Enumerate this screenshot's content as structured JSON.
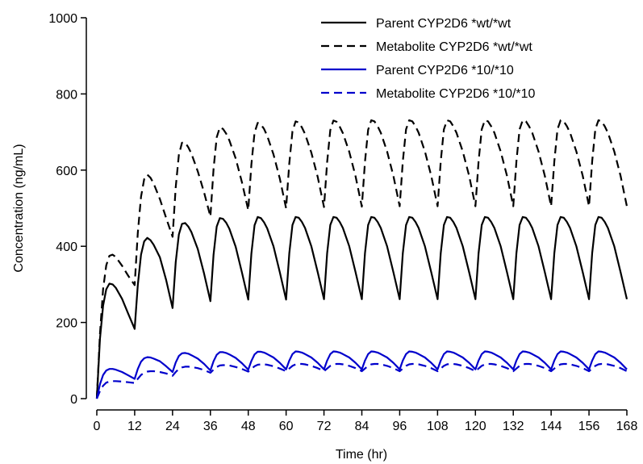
{
  "chart_data": {
    "type": "line",
    "title": "",
    "xlabel": "Time (hr)",
    "ylabel": "Concentration (ng/mL)",
    "xlim": [
      0,
      168
    ],
    "ylim": [
      0,
      1000
    ],
    "xticks": [
      0,
      12,
      24,
      36,
      48,
      60,
      72,
      84,
      96,
      108,
      120,
      132,
      144,
      156,
      168
    ],
    "yticks": [
      0,
      200,
      400,
      600,
      800,
      1000
    ],
    "grid": false,
    "legend_position": "top-right",
    "dosing_interval_hr": 12,
    "series": [
      {
        "name": "Parent CYP2D6 *wt/*wt",
        "color": "#000000",
        "dash": "solid",
        "x": [
          0,
          1,
          2,
          3,
          4,
          5,
          6,
          8,
          10,
          12,
          13,
          14,
          15,
          16,
          17,
          18,
          20,
          22,
          24,
          25,
          26,
          27,
          28,
          29,
          30,
          32,
          34,
          36,
          37,
          38,
          39,
          40,
          41,
          42,
          44,
          46,
          48,
          49,
          50,
          51,
          52,
          53,
          54,
          56,
          58,
          60,
          61,
          62,
          63,
          64,
          65,
          66,
          68,
          70,
          72,
          73,
          74,
          75,
          76,
          77,
          78,
          80,
          82,
          84,
          85,
          86,
          87,
          88,
          89,
          90,
          92,
          94,
          96,
          97,
          98,
          99,
          100,
          101,
          102,
          104,
          106,
          108,
          109,
          110,
          111,
          112,
          113,
          114,
          116,
          118,
          120,
          121,
          122,
          123,
          124,
          125,
          126,
          128,
          130,
          132,
          133,
          134,
          135,
          136,
          137,
          138,
          140,
          142,
          144,
          145,
          146,
          147,
          148,
          149,
          150,
          152,
          154,
          156,
          157,
          158,
          159,
          160,
          161,
          162,
          164,
          166,
          168
        ],
        "y": [
          0,
          157,
          244,
          287,
          302,
          300,
          291,
          262,
          222,
          183,
          298,
          378,
          413,
          422,
          416,
          404,
          371,
          311,
          238,
          358,
          431,
          459,
          461,
          452,
          437,
          393,
          328,
          256,
          378,
          452,
          474,
          472,
          462,
          446,
          399,
          331,
          260,
          381,
          455,
          477,
          474,
          463,
          447,
          400,
          332,
          260,
          382,
          456,
          477,
          475,
          464,
          448,
          400,
          332,
          261,
          382,
          456,
          477,
          475,
          464,
          448,
          400,
          332,
          261,
          382,
          456,
          477,
          475,
          464,
          448,
          400,
          332,
          261,
          382,
          456,
          477,
          475,
          464,
          448,
          400,
          332,
          261,
          382,
          456,
          477,
          475,
          464,
          448,
          400,
          332,
          261,
          382,
          456,
          477,
          475,
          464,
          448,
          400,
          332,
          261,
          382,
          456,
          477,
          475,
          464,
          448,
          400,
          332,
          261,
          382,
          456,
          477,
          475,
          464,
          448,
          400,
          332,
          261,
          382,
          456,
          477,
          475,
          464,
          448,
          400,
          332,
          261
        ]
      },
      {
        "name": "Metabolite CYP2D6 *wt/*wt",
        "color": "#000000",
        "dash": "dashed",
        "x": [
          0,
          1,
          2,
          3,
          4,
          5,
          6,
          8,
          10,
          12,
          13,
          14,
          15,
          16,
          17,
          18,
          20,
          22,
          24,
          25,
          26,
          27,
          28,
          29,
          30,
          32,
          34,
          36,
          37,
          38,
          39,
          40,
          41,
          42,
          44,
          46,
          48,
          49,
          50,
          51,
          52,
          53,
          54,
          56,
          58,
          60,
          61,
          62,
          63,
          64,
          65,
          66,
          68,
          70,
          72,
          73,
          74,
          75,
          76,
          77,
          78,
          80,
          82,
          84,
          85,
          86,
          87,
          88,
          89,
          90,
          92,
          94,
          96,
          97,
          98,
          99,
          100,
          101,
          102,
          104,
          106,
          108,
          109,
          110,
          111,
          112,
          113,
          114,
          116,
          118,
          120,
          121,
          122,
          123,
          124,
          125,
          126,
          128,
          130,
          132,
          133,
          134,
          135,
          136,
          137,
          138,
          140,
          142,
          144,
          145,
          146,
          147,
          148,
          149,
          150,
          152,
          154,
          156,
          157,
          158,
          159,
          160,
          161,
          162,
          164,
          166,
          168
        ],
        "y": [
          0,
          170,
          288,
          350,
          375,
          378,
          372,
          349,
          322,
          298,
          435,
          530,
          576,
          588,
          580,
          565,
          524,
          474,
          425,
          555,
          640,
          672,
          672,
          660,
          643,
          597,
          541,
          478,
          603,
          686,
          712,
          708,
          696,
          678,
          631,
          568,
          495,
          615,
          698,
          724,
          720,
          708,
          690,
          641,
          578,
          500,
          618,
          702,
          728,
          725,
          712,
          695,
          646,
          582,
          503,
          621,
          705,
          730,
          727,
          714,
          697,
          648,
          584,
          504,
          622,
          706,
          731,
          728,
          715,
          698,
          649,
          585,
          505,
          623,
          707,
          731,
          728,
          715,
          698,
          649,
          585,
          505,
          623,
          707,
          731,
          728,
          715,
          698,
          649,
          585,
          505,
          623,
          707,
          731,
          728,
          715,
          698,
          649,
          585,
          505,
          623,
          707,
          731,
          728,
          715,
          698,
          649,
          585,
          505,
          623,
          707,
          731,
          728,
          715,
          698,
          649,
          585,
          505,
          623,
          707,
          731,
          728,
          715,
          698,
          649,
          585,
          505
        ]
      },
      {
        "name": "Parent CYP2D6 *10/*10",
        "color": "#0000cc",
        "dash": "solid",
        "x": [
          0,
          1,
          2,
          3,
          4,
          5,
          6,
          8,
          10,
          12,
          13,
          14,
          15,
          16,
          17,
          18,
          20,
          22,
          24,
          25,
          26,
          27,
          28,
          29,
          30,
          32,
          34,
          36,
          37,
          38,
          39,
          40,
          41,
          42,
          44,
          46,
          48,
          49,
          50,
          51,
          52,
          53,
          54,
          56,
          58,
          60,
          61,
          62,
          63,
          64,
          65,
          66,
          68,
          70,
          72,
          73,
          74,
          75,
          76,
          77,
          78,
          80,
          82,
          84,
          85,
          86,
          87,
          88,
          89,
          90,
          92,
          94,
          96,
          97,
          98,
          99,
          100,
          101,
          102,
          104,
          106,
          108,
          109,
          110,
          111,
          112,
          113,
          114,
          116,
          118,
          120,
          121,
          122,
          123,
          124,
          125,
          126,
          128,
          130,
          132,
          133,
          134,
          135,
          136,
          137,
          138,
          140,
          142,
          144,
          145,
          146,
          147,
          148,
          149,
          150,
          152,
          154,
          156,
          157,
          158,
          159,
          160,
          161,
          162,
          164,
          166,
          168
        ],
        "y": [
          0,
          38,
          62,
          74,
          78,
          78,
          76,
          70,
          61,
          52,
          78,
          97,
          106,
          109,
          108,
          105,
          98,
          85,
          70,
          95,
          112,
          119,
          120,
          118,
          114,
          105,
          91,
          74,
          98,
          115,
          122,
          122,
          120,
          116,
          107,
          93,
          76,
          99,
          116,
          123,
          123,
          121,
          117,
          108,
          94,
          77,
          100,
          117,
          124,
          123,
          121,
          117,
          108,
          94,
          77,
          100,
          117,
          124,
          123,
          121,
          117,
          108,
          94,
          77,
          100,
          117,
          124,
          123,
          121,
          117,
          108,
          94,
          77,
          100,
          117,
          124,
          123,
          121,
          117,
          108,
          94,
          77,
          100,
          117,
          124,
          123,
          121,
          117,
          108,
          94,
          77,
          100,
          117,
          124,
          123,
          121,
          117,
          108,
          94,
          77,
          100,
          117,
          124,
          123,
          121,
          117,
          108,
          94,
          77,
          100,
          117,
          124,
          123,
          121,
          117,
          108,
          94,
          77,
          100,
          117,
          124,
          123,
          121,
          117,
          108,
          94,
          77
        ]
      },
      {
        "name": "Metabolite CYP2D6 *10/*10",
        "color": "#0000cc",
        "dash": "dashed",
        "x": [
          0,
          1,
          2,
          3,
          4,
          5,
          6,
          8,
          10,
          12,
          13,
          14,
          15,
          16,
          17,
          18,
          20,
          22,
          24,
          25,
          26,
          27,
          28,
          29,
          30,
          32,
          34,
          36,
          37,
          38,
          39,
          40,
          41,
          42,
          44,
          46,
          48,
          49,
          50,
          51,
          52,
          53,
          54,
          56,
          58,
          60,
          61,
          62,
          63,
          64,
          65,
          66,
          68,
          70,
          72,
          73,
          74,
          75,
          76,
          77,
          78,
          80,
          82,
          84,
          85,
          86,
          87,
          88,
          89,
          90,
          92,
          94,
          96,
          97,
          98,
          99,
          100,
          101,
          102,
          104,
          106,
          108,
          109,
          110,
          111,
          112,
          113,
          114,
          116,
          118,
          120,
          121,
          122,
          123,
          124,
          125,
          126,
          128,
          130,
          132,
          133,
          134,
          135,
          136,
          137,
          138,
          140,
          142,
          144,
          145,
          146,
          147,
          148,
          149,
          150,
          152,
          154,
          156,
          157,
          158,
          159,
          160,
          161,
          162,
          164,
          166,
          168
        ],
        "y": [
          0,
          20,
          34,
          42,
          45,
          46,
          46,
          45,
          43,
          41,
          52,
          62,
          68,
          71,
          72,
          72,
          70,
          66,
          60,
          70,
          78,
          82,
          84,
          84,
          83,
          80,
          75,
          68,
          76,
          83,
          87,
          88,
          88,
          87,
          83,
          78,
          71,
          78,
          85,
          89,
          90,
          90,
          89,
          85,
          79,
          72,
          79,
          86,
          90,
          91,
          91,
          90,
          86,
          80,
          72,
          79,
          86,
          90,
          91,
          91,
          90,
          86,
          80,
          72,
          79,
          86,
          90,
          91,
          91,
          90,
          86,
          80,
          72,
          79,
          86,
          90,
          91,
          91,
          90,
          86,
          80,
          72,
          79,
          86,
          90,
          91,
          91,
          90,
          86,
          80,
          72,
          79,
          86,
          90,
          91,
          91,
          90,
          86,
          80,
          72,
          79,
          86,
          90,
          91,
          91,
          90,
          86,
          80,
          72,
          79,
          86,
          90,
          91,
          91,
          90,
          86,
          80,
          72,
          79,
          86,
          90,
          91,
          91,
          90,
          86,
          80,
          72
        ]
      }
    ]
  }
}
